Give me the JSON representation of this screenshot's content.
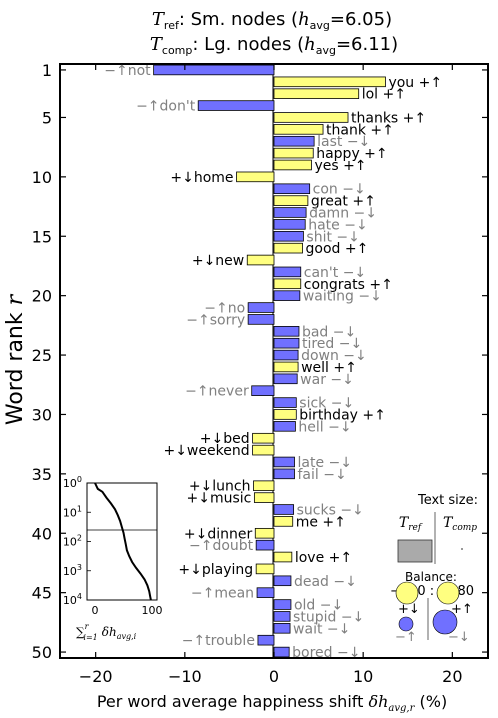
{
  "title": {
    "line1_sym": "T",
    "line1_sub": "ref",
    "line1_text": ": Sm. nodes (",
    "line1_h": "h",
    "line1_hsub": "avg",
    "line1_val": "=6.05)",
    "line2_sym": "T",
    "line2_sub": "comp",
    "line2_text": ": Lg. nodes (",
    "line2_h": "h",
    "line2_hsub": "avg",
    "line2_val": "=6.11)"
  },
  "colors": {
    "pos": "#ffff80",
    "neg": "#7070ff",
    "dark_text": "#000000",
    "grey_text": "#808080"
  },
  "chart_data": {
    "type": "bar",
    "orientation": "horizontal",
    "xlabel": "Per word average happiness shift δh_avg,r (%)",
    "xlabel_prefix": "Per word average happiness shift ",
    "xlabel_sym": "δh",
    "xlabel_sub": "avg,r",
    "xlabel_suffix": " (%)",
    "ylabel": "Word rank r",
    "ylabel_text": "Word rank ",
    "ylabel_sym": "r",
    "xlim": [
      -24,
      24
    ],
    "ylim": [
      0.5,
      50.5
    ],
    "xticks": [
      -20,
      -10,
      0,
      10,
      20
    ],
    "yticks": [
      1,
      5,
      10,
      15,
      20,
      25,
      30,
      35,
      40,
      45,
      50
    ],
    "words": [
      {
        "rank": 1,
        "word": "not",
        "label": "−↑not",
        "value": -13.5,
        "type": "neg_up"
      },
      {
        "rank": 2,
        "word": "you",
        "label": "you +↑",
        "value": 12.5,
        "type": "pos_up"
      },
      {
        "rank": 3,
        "word": "lol",
        "label": "lol +↑",
        "value": 9.5,
        "type": "pos_up"
      },
      {
        "rank": 4,
        "word": "don't",
        "label": "−↑don't",
        "value": -8.5,
        "type": "neg_up"
      },
      {
        "rank": 5,
        "word": "thanks",
        "label": "thanks +↑",
        "value": 8.3,
        "type": "pos_up"
      },
      {
        "rank": 6,
        "word": "thank",
        "label": "thank +↑",
        "value": 5.5,
        "type": "pos_up"
      },
      {
        "rank": 7,
        "word": "last",
        "label": "last −↓",
        "value": 4.5,
        "type": "neg_down"
      },
      {
        "rank": 8,
        "word": "happy",
        "label": "happy +↑",
        "value": 4.4,
        "type": "pos_up"
      },
      {
        "rank": 9,
        "word": "yes",
        "label": "yes +↑",
        "value": 4.2,
        "type": "pos_up"
      },
      {
        "rank": 10,
        "word": "home",
        "label": "+↓home",
        "value": -4.2,
        "type": "pos_down"
      },
      {
        "rank": 11,
        "word": "con",
        "label": "con −↓",
        "value": 4.0,
        "type": "neg_down"
      },
      {
        "rank": 12,
        "word": "great",
        "label": "great +↑",
        "value": 3.8,
        "type": "pos_up"
      },
      {
        "rank": 13,
        "word": "damn",
        "label": "damn −↓",
        "value": 3.6,
        "type": "neg_down"
      },
      {
        "rank": 14,
        "word": "hate",
        "label": "hate −↓",
        "value": 3.5,
        "type": "neg_down"
      },
      {
        "rank": 15,
        "word": "shit",
        "label": "shit −↓",
        "value": 3.3,
        "type": "neg_down"
      },
      {
        "rank": 16,
        "word": "good",
        "label": "good +↑",
        "value": 3.2,
        "type": "pos_up"
      },
      {
        "rank": 17,
        "word": "new",
        "label": "+↓new",
        "value": -3.0,
        "type": "pos_down"
      },
      {
        "rank": 18,
        "word": "can't",
        "label": "can't −↓",
        "value": 3.0,
        "type": "neg_down"
      },
      {
        "rank": 19,
        "word": "congrats",
        "label": "congrats +↑",
        "value": 3.0,
        "type": "pos_up"
      },
      {
        "rank": 20,
        "word": "waiting",
        "label": "waiting −↓",
        "value": 2.9,
        "type": "neg_down"
      },
      {
        "rank": 21,
        "word": "no",
        "label": "−↑no",
        "value": -2.9,
        "type": "neg_up"
      },
      {
        "rank": 22,
        "word": "sorry",
        "label": "−↑sorry",
        "value": -2.9,
        "type": "neg_up"
      },
      {
        "rank": 23,
        "word": "bad",
        "label": "bad −↓",
        "value": 2.8,
        "type": "neg_down"
      },
      {
        "rank": 24,
        "word": "tired",
        "label": "tired −↓",
        "value": 2.8,
        "type": "neg_down"
      },
      {
        "rank": 25,
        "word": "down",
        "label": "down −↓",
        "value": 2.7,
        "type": "neg_down"
      },
      {
        "rank": 26,
        "word": "well",
        "label": "well +↑",
        "value": 2.7,
        "type": "pos_up"
      },
      {
        "rank": 27,
        "word": "war",
        "label": "war −↓",
        "value": 2.6,
        "type": "neg_down"
      },
      {
        "rank": 28,
        "word": "never",
        "label": "−↑never",
        "value": -2.5,
        "type": "neg_up"
      },
      {
        "rank": 29,
        "word": "sick",
        "label": "sick −↓",
        "value": 2.5,
        "type": "neg_down"
      },
      {
        "rank": 30,
        "word": "birthday",
        "label": "birthday +↑",
        "value": 2.5,
        "type": "pos_up"
      },
      {
        "rank": 31,
        "word": "hell",
        "label": "hell −↓",
        "value": 2.4,
        "type": "neg_down"
      },
      {
        "rank": 32,
        "word": "bed",
        "label": "+↓bed",
        "value": -2.4,
        "type": "pos_down"
      },
      {
        "rank": 33,
        "word": "weekend",
        "label": "+↓weekend",
        "value": -2.4,
        "type": "pos_down"
      },
      {
        "rank": 34,
        "word": "late",
        "label": "late −↓",
        "value": 2.3,
        "type": "neg_down"
      },
      {
        "rank": 35,
        "word": "fail",
        "label": "fail −↓",
        "value": 2.3,
        "type": "neg_down"
      },
      {
        "rank": 36,
        "word": "lunch",
        "label": "+↓lunch",
        "value": -2.3,
        "type": "pos_down"
      },
      {
        "rank": 37,
        "word": "music",
        "label": "+↓music",
        "value": -2.2,
        "type": "pos_down"
      },
      {
        "rank": 38,
        "word": "sucks",
        "label": "sucks −↓",
        "value": 2.2,
        "type": "neg_down"
      },
      {
        "rank": 39,
        "word": "me",
        "label": "me +↑",
        "value": 2.1,
        "type": "pos_up"
      },
      {
        "rank": 40,
        "word": "dinner",
        "label": "+↓dinner",
        "value": -2.1,
        "type": "pos_down"
      },
      {
        "rank": 41,
        "word": "doubt",
        "label": "−↑doubt",
        "value": -2.0,
        "type": "neg_up"
      },
      {
        "rank": 42,
        "word": "love",
        "label": "love +↑",
        "value": 2.0,
        "type": "pos_up"
      },
      {
        "rank": 43,
        "word": "playing",
        "label": "+↓playing",
        "value": -2.0,
        "type": "pos_down"
      },
      {
        "rank": 44,
        "word": "dead",
        "label": "dead −↓",
        "value": 1.9,
        "type": "neg_down"
      },
      {
        "rank": 45,
        "word": "mean",
        "label": "−↑mean",
        "value": -1.9,
        "type": "neg_up"
      },
      {
        "rank": 46,
        "word": "old",
        "label": "old −↓",
        "value": 1.9,
        "type": "neg_down"
      },
      {
        "rank": 47,
        "word": "stupid",
        "label": "stupid −↓",
        "value": 1.8,
        "type": "neg_down"
      },
      {
        "rank": 48,
        "word": "wait",
        "label": "wait −↓",
        "value": 1.8,
        "type": "neg_down"
      },
      {
        "rank": 49,
        "word": "trouble",
        "label": "−↑trouble",
        "value": -1.8,
        "type": "neg_up"
      },
      {
        "rank": 50,
        "word": "bored",
        "label": "bored −↓",
        "value": 1.7,
        "type": "neg_down"
      }
    ],
    "inset": {
      "type": "line",
      "xlabel_sym": "∑",
      "xlabel_sup": "r",
      "xlabel_sub": "i=1",
      "xlabel_rest": "δh",
      "xlabel_rest_sub": "avg,i",
      "xticks": [
        "0",
        "100"
      ],
      "yticks": [
        {
          "base": "10",
          "exp": "0"
        },
        {
          "base": "10",
          "exp": "1"
        },
        {
          "base": "10",
          "exp": "2"
        },
        {
          "base": "10",
          "exp": "3"
        },
        {
          "base": "10",
          "exp": "4"
        }
      ],
      "curve": [
        [
          0,
          0
        ],
        [
          5,
          0.2
        ],
        [
          13,
          0.3
        ],
        [
          20,
          0.5
        ],
        [
          28,
          0.7
        ],
        [
          35,
          0.9
        ],
        [
          40,
          1.1
        ],
        [
          44,
          1.3
        ],
        [
          47,
          1.5
        ],
        [
          50,
          1.7
        ],
        [
          52,
          1.9
        ],
        [
          54,
          2.1
        ],
        [
          56,
          2.3
        ],
        [
          60,
          2.5
        ],
        [
          65,
          2.7
        ],
        [
          72,
          2.9
        ],
        [
          80,
          3.1
        ],
        [
          87,
          3.3
        ],
        [
          92,
          3.5
        ],
        [
          95,
          3.7
        ],
        [
          97,
          3.9
        ],
        [
          98,
          4.0
        ]
      ]
    },
    "legend": {
      "text_size_label": "Text size:",
      "tref_sym": "T",
      "tref_sub": "ref",
      "tcomp_sym": "T",
      "tcomp_sub": "comp",
      "balance_label": "Balance:",
      "balance_values": "−180 : +280",
      "quad_pos_down": "+↓",
      "quad_pos_up": "+↑",
      "quad_neg_up": "−↑",
      "quad_neg_down": "−↓"
    }
  }
}
